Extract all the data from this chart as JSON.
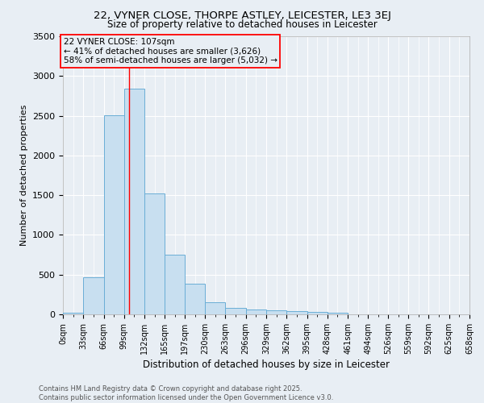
{
  "title1": "22, VYNER CLOSE, THORPE ASTLEY, LEICESTER, LE3 3EJ",
  "title2": "Size of property relative to detached houses in Leicester",
  "xlabel": "Distribution of detached houses by size in Leicester",
  "ylabel": "Number of detached properties",
  "annotation_line1": "22 VYNER CLOSE: 107sqm",
  "annotation_line2": "← 41% of detached houses are smaller (3,626)",
  "annotation_line3": "58% of semi-detached houses are larger (5,032) →",
  "footnote1": "Contains HM Land Registry data © Crown copyright and database right 2025.",
  "footnote2": "Contains public sector information licensed under the Open Government Licence v3.0.",
  "bin_edges": [
    0,
    33,
    66,
    99,
    132,
    165,
    197,
    230,
    263,
    296,
    329,
    362,
    395,
    428,
    461,
    494,
    526,
    559,
    592,
    625,
    658
  ],
  "bin_heights": [
    25,
    470,
    2510,
    2840,
    1520,
    750,
    390,
    150,
    80,
    60,
    50,
    40,
    35,
    25,
    5,
    5,
    3,
    2,
    1,
    1
  ],
  "bar_color": "#c8dff0",
  "bar_edge_color": "#6aaed6",
  "red_line_x": 107,
  "background_color": "#e8eef4",
  "plot_bg_color": "#e8eef4",
  "grid_color": "#ffffff",
  "ylim": [
    0,
    3500
  ],
  "yticks": [
    0,
    500,
    1000,
    1500,
    2000,
    2500,
    3000,
    3500
  ],
  "title1_fontsize": 9.5,
  "title2_fontsize": 8.5,
  "axis_label_fontsize": 8,
  "tick_fontsize": 7,
  "annot_fontsize": 7.5,
  "footnote_fontsize": 6
}
